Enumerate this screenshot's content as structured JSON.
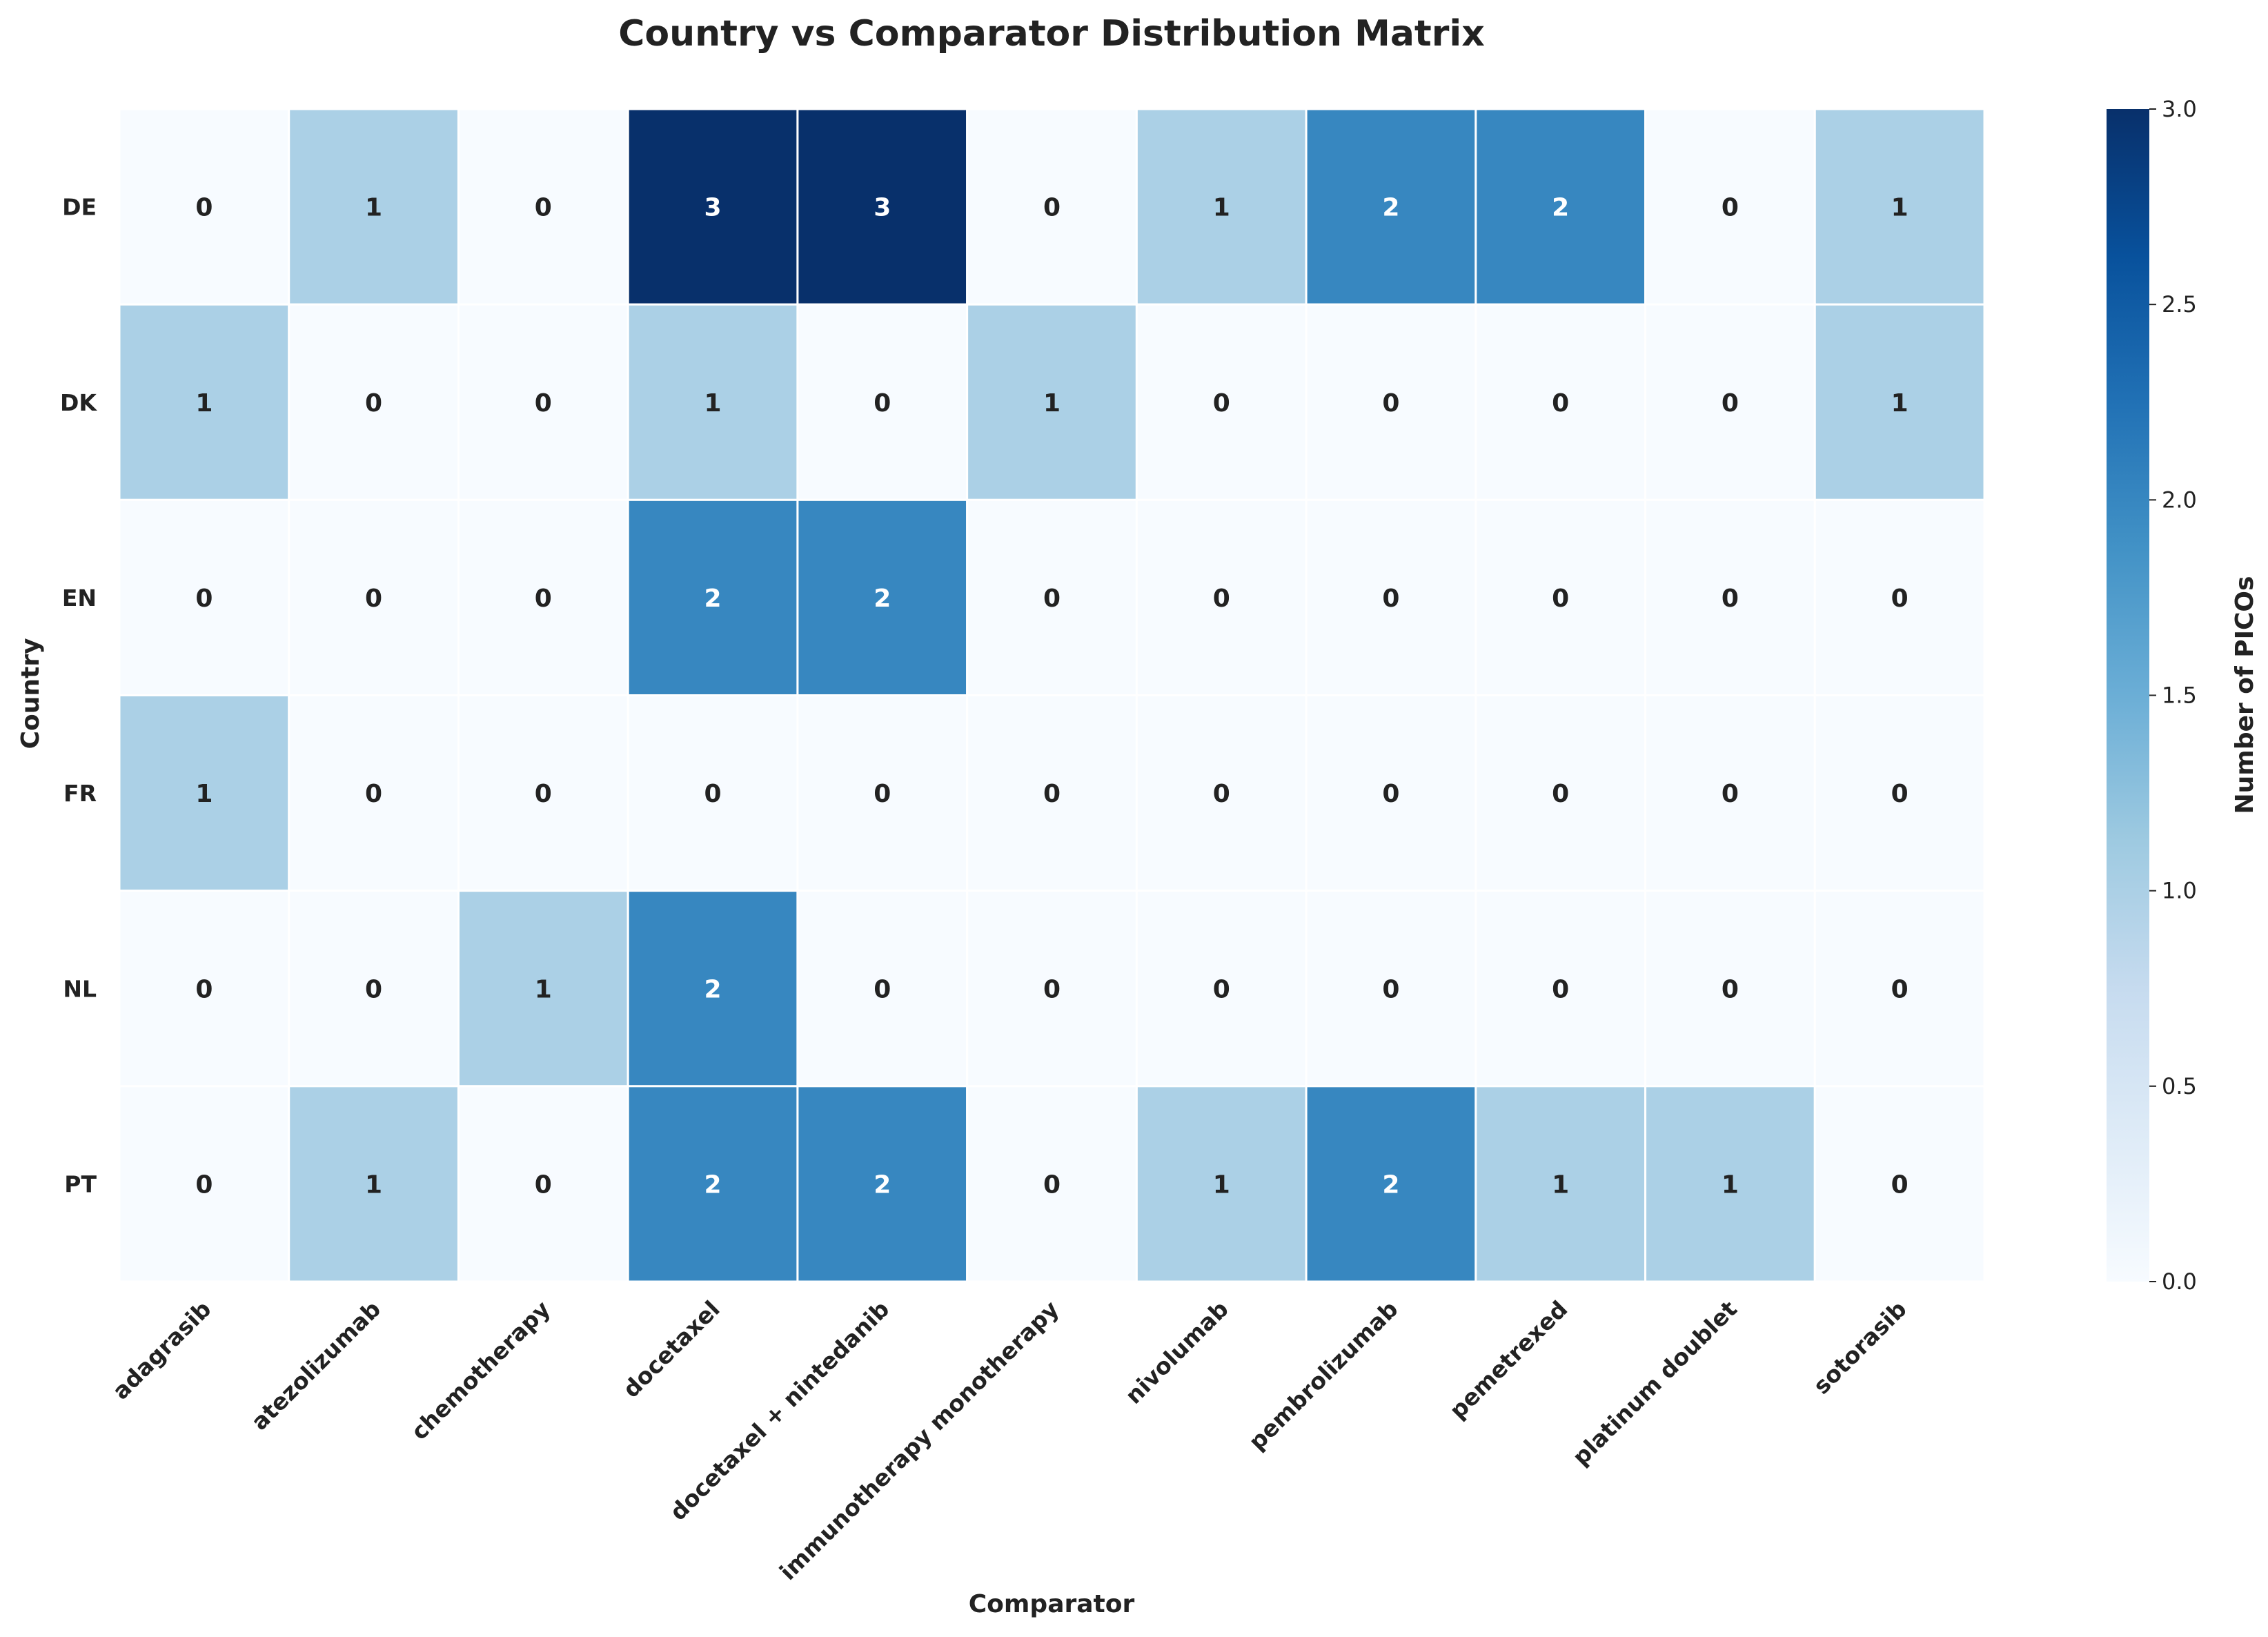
{
  "chart_data": {
    "type": "heatmap",
    "title": "Country vs Comparator Distribution Matrix",
    "xlabel": "Comparator",
    "ylabel": "Country",
    "rows": [
      "DE",
      "DK",
      "EN",
      "FR",
      "NL",
      "PT"
    ],
    "columns": [
      "adagrasib",
      "atezolizumab",
      "chemotherapy",
      "docetaxel",
      "docetaxel + nintedanib",
      "immunotherapy monotherapy",
      "nivolumab",
      "pembrolizumab",
      "pemetrexed",
      "platinum doublet",
      "sotorasib"
    ],
    "values": [
      [
        0,
        1,
        0,
        3,
        3,
        0,
        1,
        2,
        2,
        0,
        1
      ],
      [
        1,
        0,
        0,
        1,
        0,
        1,
        0,
        0,
        0,
        0,
        1
      ],
      [
        0,
        0,
        0,
        2,
        2,
        0,
        0,
        0,
        0,
        0,
        0
      ],
      [
        1,
        0,
        0,
        0,
        0,
        0,
        0,
        0,
        0,
        0,
        0
      ],
      [
        0,
        0,
        1,
        2,
        0,
        0,
        0,
        0,
        0,
        0,
        0
      ],
      [
        0,
        1,
        0,
        2,
        2,
        0,
        1,
        2,
        1,
        1,
        0
      ]
    ],
    "colorbar": {
      "label": "Number of PICOs",
      "range": [
        0,
        3
      ],
      "ticks": [
        "0.0",
        "0.5",
        "1.0",
        "1.5",
        "2.0",
        "2.5",
        "3.0"
      ]
    },
    "colors": {
      "low": "#f7fbff",
      "mid": "#a6cde3",
      "high": "#08306b",
      "text_dark": "#222222",
      "text_light": "#ffffff",
      "gridline": "#ffffff"
    },
    "annotated": true,
    "legend_position": "right"
  }
}
